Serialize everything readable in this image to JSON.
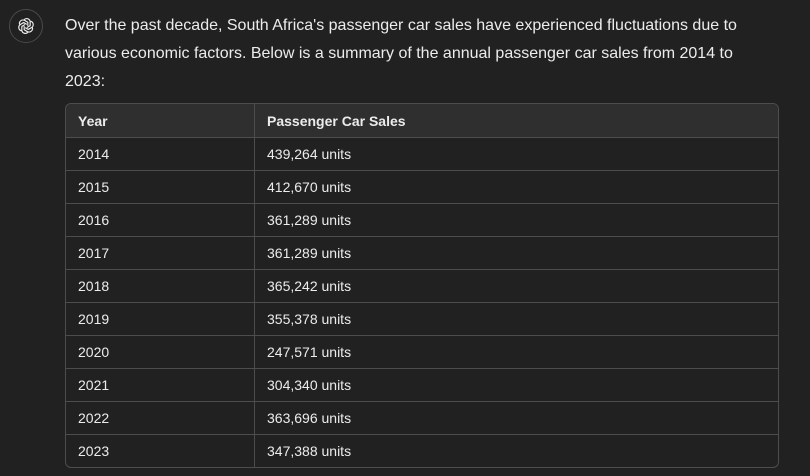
{
  "assistant": {
    "avatar_icon": "openai-logo-icon"
  },
  "message": {
    "intro": "Over the past decade, South Africa's passenger car sales have experienced fluctuations due to various economic factors. Below is a summary of the annual passenger car sales from 2014 to 2023:"
  },
  "table": {
    "headers": [
      "Year",
      "Passenger Car Sales"
    ],
    "rows": [
      [
        "2014",
        "439,264 units"
      ],
      [
        "2015",
        "412,670 units"
      ],
      [
        "2016",
        "361,289 units"
      ],
      [
        "2017",
        "361,289 units"
      ],
      [
        "2018",
        "365,242 units"
      ],
      [
        "2019",
        "355,378 units"
      ],
      [
        "2020",
        "247,571 units"
      ],
      [
        "2021",
        "304,340 units"
      ],
      [
        "2022",
        "363,696 units"
      ],
      [
        "2023",
        "347,388 units"
      ]
    ]
  }
}
